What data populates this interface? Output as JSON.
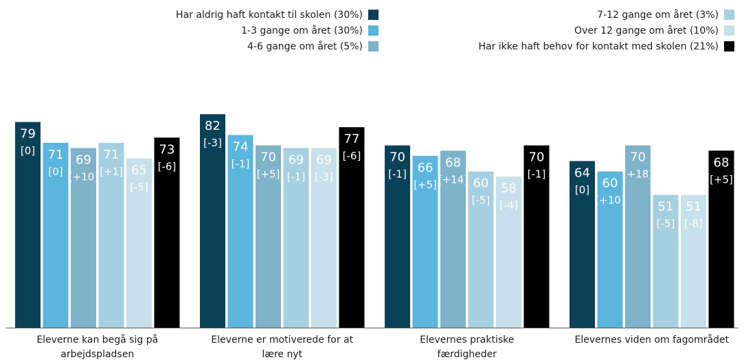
{
  "colors": {
    "never": "#0b4157",
    "1_3": "#5bb5dd",
    "4_6": "#7fb3c9",
    "7_12": "#a6cfdf",
    "over_12": "#c7e0eb",
    "no_need": "#000000"
  },
  "chart_data": {
    "type": "bar",
    "title": "",
    "xlabel": "",
    "ylabel": "",
    "ylim": [
      0,
      100
    ],
    "grid": false,
    "legend_placement": "top",
    "categories": [
      "Eleverne kan begå sig på arbejdspladsen",
      "Eleverne er motiverede for at lære nyt",
      "Elevernes praktiske færdigheder",
      "Elevernes viden om fagområdet"
    ],
    "series": [
      {
        "name": "Har aldrig haft kontakt til skolen (30%)",
        "color": "#0b4157",
        "values": [
          79,
          82,
          70,
          64
        ],
        "changes": [
          "[0]",
          "[-3]",
          "[-1]",
          "[0]"
        ]
      },
      {
        "name": "1-3 gange om året (30%)",
        "color": "#5bb5dd",
        "values": [
          71,
          74,
          66,
          60
        ],
        "changes": [
          "[0]",
          "[-1]",
          "[+5]",
          "[+10]"
        ]
      },
      {
        "name": "4-6 gange om året (5%)",
        "color": "#7fb3c9",
        "values": [
          69,
          70,
          68,
          70
        ],
        "changes": [
          "[+10]",
          "[+5]",
          "[+14]",
          "[+18]"
        ]
      },
      {
        "name": "7-12 gange om året (3%)",
        "color": "#a6cfdf",
        "values": [
          71,
          69,
          60,
          51
        ],
        "changes": [
          "[+1]",
          "[-1]",
          "[-5]",
          "[-5]"
        ]
      },
      {
        "name": "Over 12 gange om året (10%)",
        "color": "#c7e0eb",
        "values": [
          65,
          69,
          58,
          51
        ],
        "changes": [
          "[-5]",
          "[-3]",
          "[-4]",
          "[-8]"
        ]
      },
      {
        "name": "Har ikke haft behov for kontakt med skolen (21%)",
        "color": "#000000",
        "values": [
          73,
          77,
          70,
          68
        ],
        "changes": [
          "[-6]",
          "[-6]",
          "[-1]",
          "[+5]"
        ]
      }
    ],
    "category_labels": [
      [
        "Eleverne kan begå sig på",
        "arbejdspladsen"
      ],
      [
        "Eleverne er motiverede for at",
        "lære nyt"
      ],
      [
        "Elevernes praktiske",
        "færdigheder"
      ],
      [
        "Elevernes viden om fagområdet"
      ]
    ]
  }
}
